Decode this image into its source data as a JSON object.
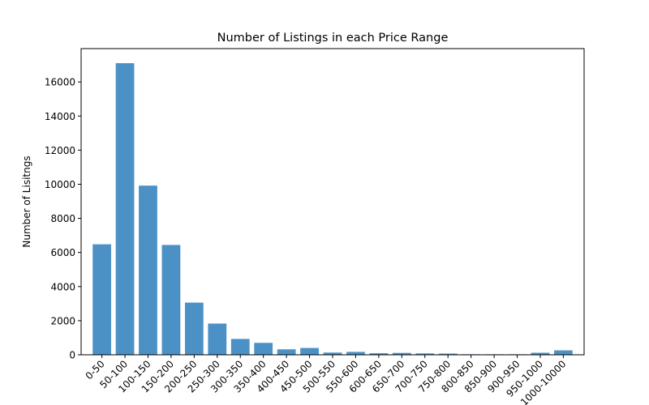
{
  "chart_data": {
    "type": "bar",
    "title": "Number of Listings in each Price Range",
    "xlabel": "",
    "ylabel": "Number of Lisitngs",
    "categories": [
      "0-50",
      "50-100",
      "100-150",
      "150-200",
      "200-250",
      "250-300",
      "300-350",
      "350-400",
      "400-450",
      "450-500",
      "500-550",
      "550-600",
      "600-650",
      "650-700",
      "700-750",
      "750-800",
      "800-850",
      "850-900",
      "900-950",
      "950-1000",
      "1000-10000"
    ],
    "values": [
      6480,
      17100,
      9920,
      6440,
      3060,
      1830,
      930,
      700,
      320,
      400,
      130,
      170,
      90,
      110,
      80,
      70,
      30,
      30,
      30,
      120,
      260
    ],
    "ylim": [
      0,
      17955
    ],
    "yticks": [
      0,
      2000,
      4000,
      6000,
      8000,
      10000,
      12000,
      14000,
      16000
    ],
    "bar_color": "#4c91c6",
    "grid": false
  }
}
